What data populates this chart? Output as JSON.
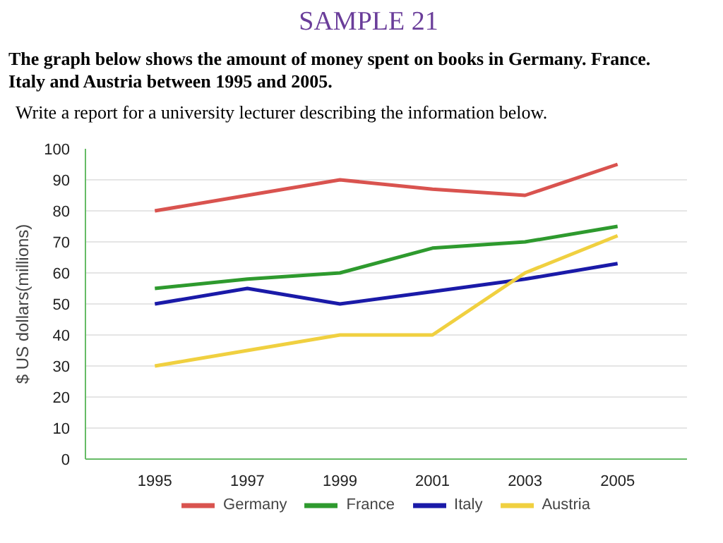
{
  "chart_data": {
    "type": "line",
    "title": "SAMPLE 21",
    "subtitle": "The graph below shows the amount of money spent on books in Germany. France. Italy and Austria between 1995 and 2005.",
    "annotations": [
      "Write a report for a university lecturer describing the information below."
    ],
    "ylabel": "$ US dollars(millions)",
    "x": [
      1995,
      1997,
      1999,
      2001,
      2003,
      2005
    ],
    "xlim": [
      1993.5,
      2006.5
    ],
    "xticks": [
      1995,
      1997,
      1999,
      2001,
      2003,
      2005
    ],
    "ylim": [
      0,
      100
    ],
    "yticks": [
      0,
      10,
      20,
      30,
      40,
      50,
      60,
      70,
      80,
      90,
      100
    ],
    "grid": "y",
    "legend": "bottom",
    "marker": "none",
    "line_style": "solid",
    "series": [
      {
        "name": "Germany",
        "color": "#d9534f",
        "values": [
          80,
          85,
          90,
          87,
          85,
          95
        ]
      },
      {
        "name": "France",
        "color": "#2e9a2e",
        "values": [
          55,
          58,
          60,
          68,
          70,
          75
        ]
      },
      {
        "name": "Italy",
        "color": "#1a1aa8",
        "values": [
          50,
          55,
          50,
          54,
          58,
          63
        ]
      },
      {
        "name": "Austria",
        "color": "#f0d040",
        "values": [
          30,
          35,
          40,
          40,
          60,
          72
        ]
      }
    ]
  }
}
